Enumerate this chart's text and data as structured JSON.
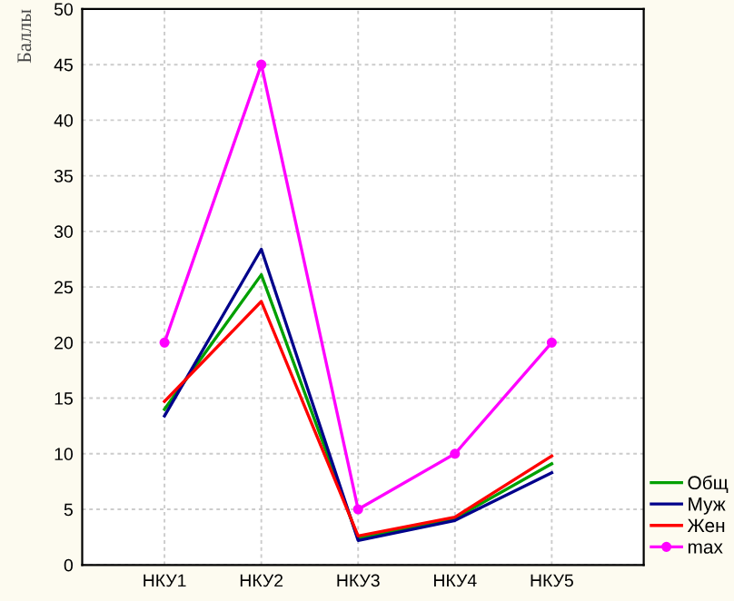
{
  "chart_data": {
    "type": "line",
    "ylabel": "Баллы",
    "categories": [
      "НКУ1",
      "НКУ2",
      "НКУ3",
      "НКУ4",
      "НКУ5"
    ],
    "series": [
      {
        "name": "Общ",
        "color": "#00a000",
        "values": [
          14.0,
          26.1,
          2.4,
          4.2,
          9.1
        ]
      },
      {
        "name": "Муж",
        "color": "#00008b",
        "values": [
          13.4,
          28.4,
          2.2,
          4.0,
          8.3
        ]
      },
      {
        "name": "Жен",
        "color": "#ff0000",
        "values": [
          14.7,
          23.7,
          2.6,
          4.3,
          9.8
        ]
      },
      {
        "name": "max",
        "color": "#ff00ff",
        "values": [
          20,
          45,
          5,
          10,
          20
        ],
        "marker": "circle"
      }
    ],
    "ylim": [
      0,
      50
    ],
    "yticks": [
      0,
      5,
      10,
      15,
      20,
      25,
      30,
      35,
      40,
      45,
      50
    ],
    "grid": true,
    "legend": "bottom right",
    "line_style": "solid"
  }
}
